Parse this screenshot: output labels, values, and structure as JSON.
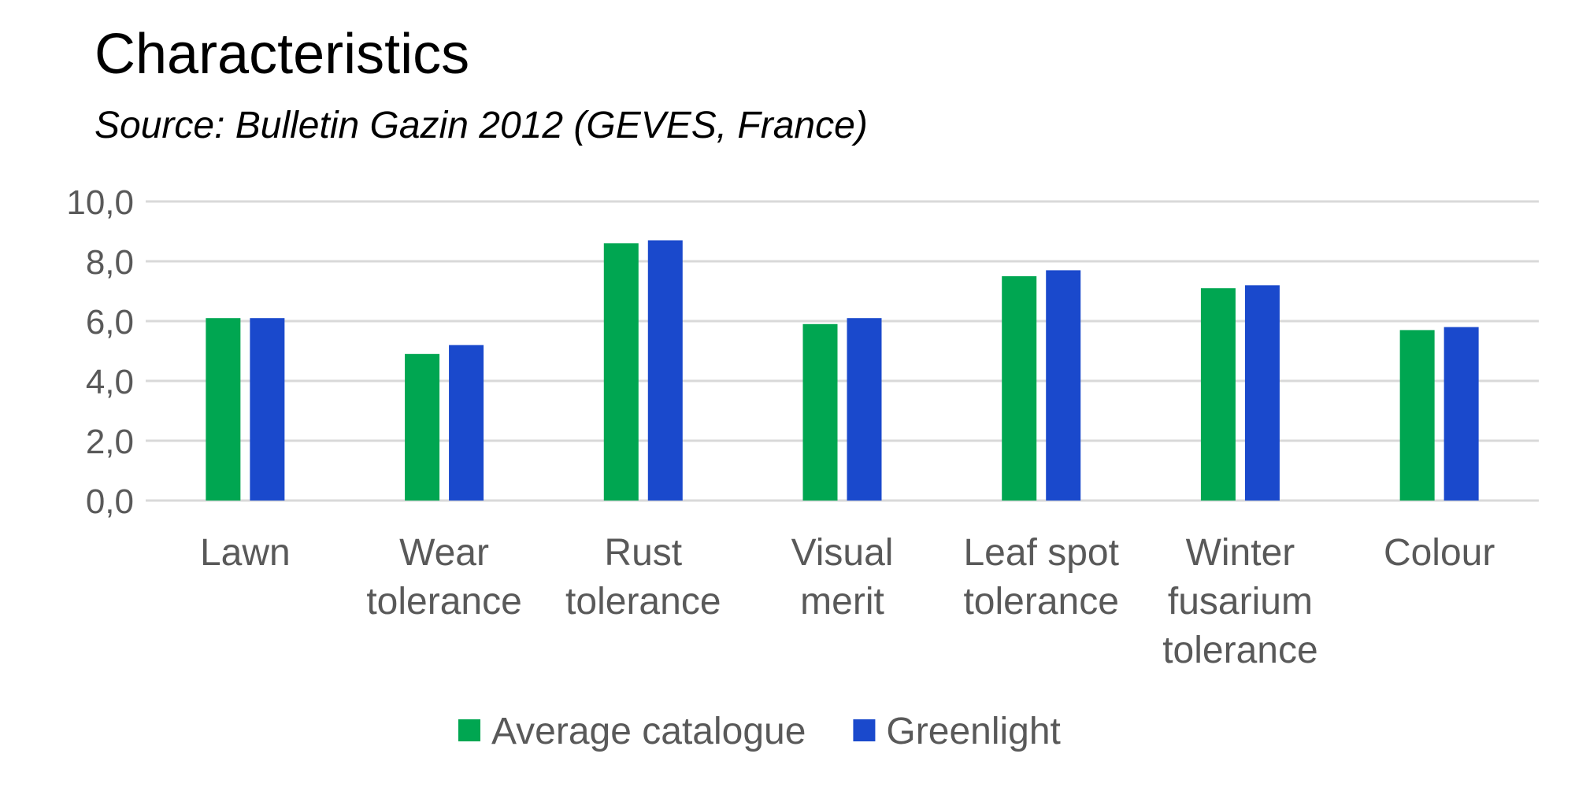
{
  "chart_data": {
    "type": "bar",
    "title": "Characteristics",
    "subtitle": "Source: Bulletin Gazin 2012 (GEVES, France)",
    "categories": [
      "Lawn",
      "Wear tolerance",
      "Rust tolerance",
      "Visual merit",
      "Leaf spot tolerance",
      "Winter fusarium tolerance",
      "Colour"
    ],
    "category_lines": [
      [
        "Lawn"
      ],
      [
        "Wear",
        "tolerance"
      ],
      [
        "Rust",
        "tolerance"
      ],
      [
        "Visual",
        "merit"
      ],
      [
        "Leaf spot",
        "tolerance"
      ],
      [
        "Winter",
        "fusarium",
        "tolerance"
      ],
      [
        "Colour"
      ]
    ],
    "series": [
      {
        "name": "Average catalogue",
        "color": "#00A651",
        "values": [
          6.1,
          4.9,
          8.6,
          5.9,
          7.5,
          7.1,
          5.7
        ]
      },
      {
        "name": "Greenlight",
        "color": "#1A49CC",
        "values": [
          6.1,
          5.2,
          8.7,
          6.1,
          7.7,
          7.2,
          5.8
        ]
      }
    ],
    "ylim": [
      0,
      10
    ],
    "yticks": [
      "0,0",
      "2,0",
      "4,0",
      "6,0",
      "8,0",
      "10,0"
    ],
    "grid": true,
    "legend": "bottom"
  }
}
